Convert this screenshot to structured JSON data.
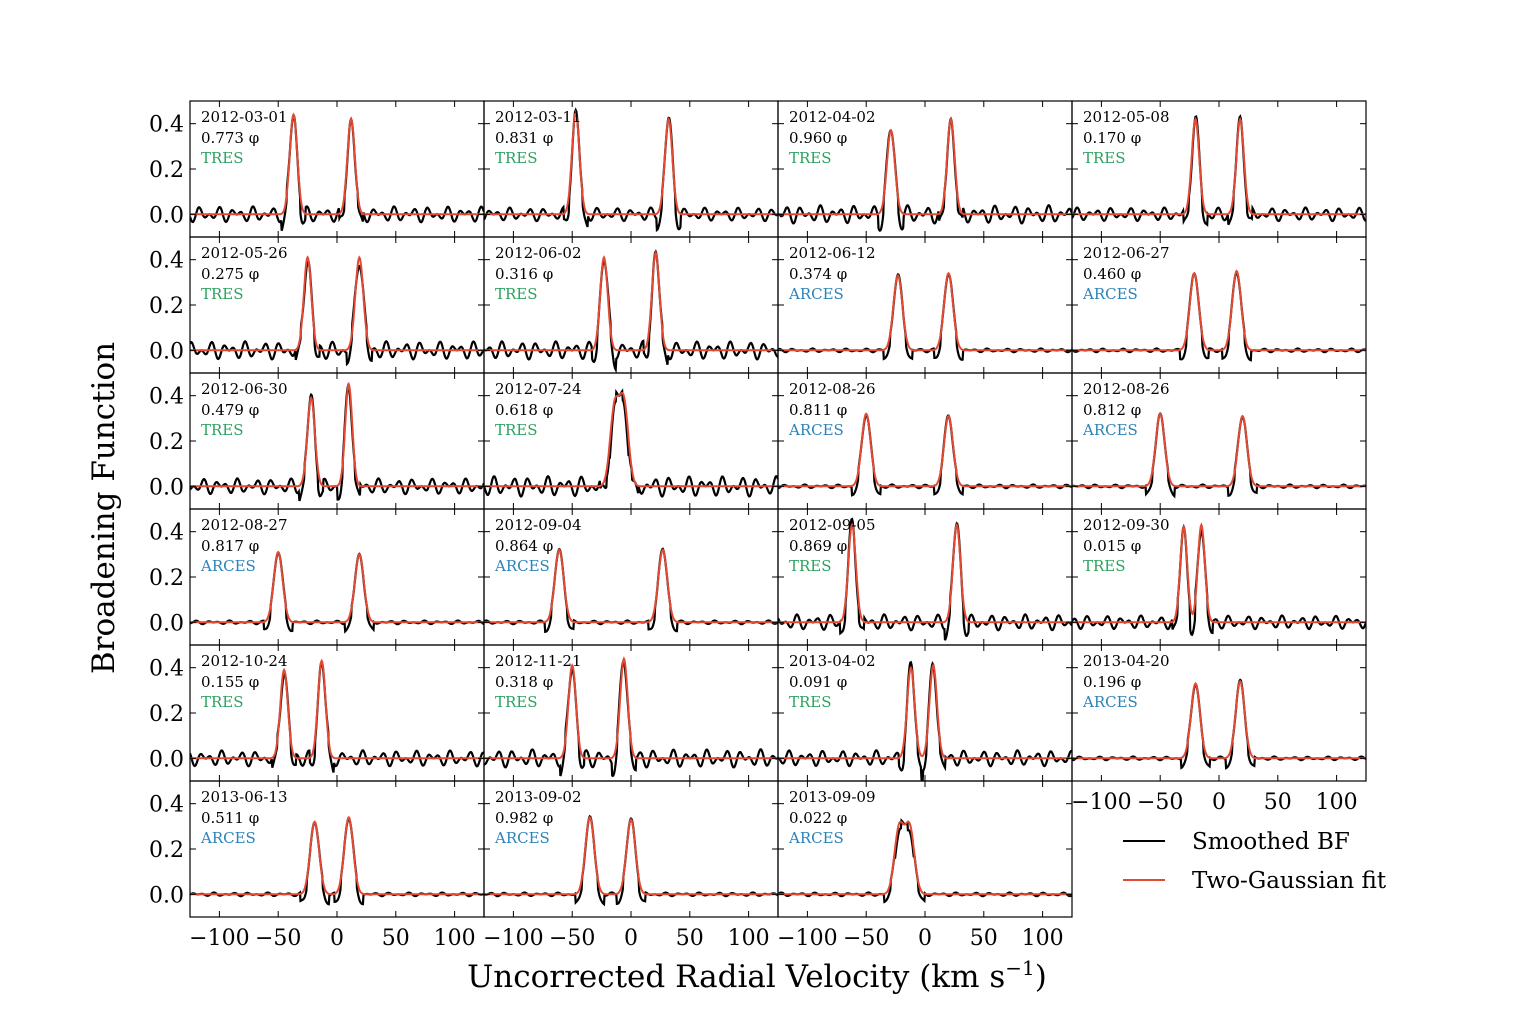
{
  "figure": {
    "xlabel": "Uncorrected Radial Velocity (km s",
    "xlabel_sup": "−1",
    "xlabel_close": ")",
    "ylabel": "Broadening Function",
    "legend": [
      {
        "label": "Smoothed BF",
        "color": "#000000"
      },
      {
        "label": "Two-Gaussian fit",
        "color": "#e24a33"
      }
    ],
    "instrument_colors": {
      "TRES": "#2ca25f",
      "ARCES": "#2b83ba"
    },
    "x_ticks": [
      "−100",
      "−50",
      "0",
      "50",
      "100"
    ],
    "y_ticks": [
      "0.0",
      "0.2",
      "0.4"
    ]
  },
  "chart_data": {
    "type": "line",
    "xlim": [
      -125,
      125
    ],
    "ylim": [
      -0.1,
      0.5
    ],
    "x_tick_values": [
      -100,
      -50,
      0,
      50,
      100
    ],
    "y_tick_values": [
      0.0,
      0.2,
      0.4
    ],
    "series_names": [
      "Smoothed BF",
      "Two-Gaussian fit"
    ],
    "panels": [
      {
        "date": "2012-03-01",
        "phase": "0.773 φ",
        "instrument": "TRES",
        "peaks": [
          {
            "center": -37,
            "amp": 0.44,
            "sigma": 3.2
          },
          {
            "center": 12,
            "amp": 0.42,
            "sigma": 3.2
          }
        ],
        "noise": 0.035
      },
      {
        "date": "2012-03-11",
        "phase": "0.831 φ",
        "instrument": "TRES",
        "peaks": [
          {
            "center": -47,
            "amp": 0.45,
            "sigma": 3.2
          },
          {
            "center": 32,
            "amp": 0.42,
            "sigma": 3.2
          }
        ],
        "noise": 0.03
      },
      {
        "date": "2012-04-02",
        "phase": "0.960 φ",
        "instrument": "TRES",
        "peaks": [
          {
            "center": -29,
            "amp": 0.37,
            "sigma": 3.4
          },
          {
            "center": 22,
            "amp": 0.42,
            "sigma": 3.2
          }
        ],
        "noise": 0.04
      },
      {
        "date": "2012-05-08",
        "phase": "0.170 φ",
        "instrument": "TRES",
        "peaks": [
          {
            "center": -20,
            "amp": 0.42,
            "sigma": 3.2
          },
          {
            "center": 18,
            "amp": 0.42,
            "sigma": 3.2
          }
        ],
        "noise": 0.03
      },
      {
        "date": "2012-05-26",
        "phase": "0.275 φ",
        "instrument": "TRES",
        "peaks": [
          {
            "center": -25,
            "amp": 0.41,
            "sigma": 3.2
          },
          {
            "center": 19,
            "amp": 0.41,
            "sigma": 3.4
          }
        ],
        "noise": 0.04
      },
      {
        "date": "2012-06-02",
        "phase": "0.316 φ",
        "instrument": "TRES",
        "peaks": [
          {
            "center": -23,
            "amp": 0.41,
            "sigma": 3.2
          },
          {
            "center": 21,
            "amp": 0.43,
            "sigma": 3.2
          }
        ],
        "noise": 0.04
      },
      {
        "date": "2012-06-12",
        "phase": "0.374 φ",
        "instrument": "ARCES",
        "peaks": [
          {
            "center": -23,
            "amp": 0.33,
            "sigma": 3.8
          },
          {
            "center": 20,
            "amp": 0.34,
            "sigma": 3.8
          }
        ],
        "noise": 0.008
      },
      {
        "date": "2012-06-27",
        "phase": "0.460 φ",
        "instrument": "ARCES",
        "peaks": [
          {
            "center": -21,
            "amp": 0.34,
            "sigma": 3.8
          },
          {
            "center": 15,
            "amp": 0.35,
            "sigma": 3.8
          }
        ],
        "noise": 0.008
      },
      {
        "date": "2012-06-30",
        "phase": "0.479 φ",
        "instrument": "TRES",
        "peaks": [
          {
            "center": -22,
            "amp": 0.39,
            "sigma": 3.2
          },
          {
            "center": 10,
            "amp": 0.45,
            "sigma": 3.0
          }
        ],
        "noise": 0.035
      },
      {
        "date": "2012-07-24",
        "phase": "0.618 φ",
        "instrument": "TRES",
        "peaks": [
          {
            "center": -14,
            "amp": 0.34,
            "sigma": 3.8
          },
          {
            "center": -6,
            "amp": 0.36,
            "sigma": 3.8
          }
        ],
        "noise": 0.045
      },
      {
        "date": "2012-08-26",
        "phase": "0.811 φ",
        "instrument": "ARCES",
        "peaks": [
          {
            "center": -50,
            "amp": 0.32,
            "sigma": 3.8
          },
          {
            "center": 20,
            "amp": 0.31,
            "sigma": 3.8
          }
        ],
        "noise": 0.008
      },
      {
        "date": "2012-08-26",
        "phase": "0.812 φ",
        "instrument": "ARCES",
        "peaks": [
          {
            "center": -50,
            "amp": 0.32,
            "sigma": 3.8
          },
          {
            "center": 20,
            "amp": 0.31,
            "sigma": 3.8
          }
        ],
        "noise": 0.008
      },
      {
        "date": "2012-08-27",
        "phase": "0.817 φ",
        "instrument": "ARCES",
        "peaks": [
          {
            "center": -50,
            "amp": 0.31,
            "sigma": 3.8
          },
          {
            "center": 19,
            "amp": 0.3,
            "sigma": 3.8
          }
        ],
        "noise": 0.008
      },
      {
        "date": "2012-09-04",
        "phase": "0.864 φ",
        "instrument": "ARCES",
        "peaks": [
          {
            "center": -61,
            "amp": 0.32,
            "sigma": 3.8
          },
          {
            "center": 27,
            "amp": 0.32,
            "sigma": 3.8
          }
        ],
        "noise": 0.008
      },
      {
        "date": "2012-09-05",
        "phase": "0.869 φ",
        "instrument": "TRES",
        "peaks": [
          {
            "center": -62,
            "amp": 0.43,
            "sigma": 3.2
          },
          {
            "center": 27,
            "amp": 0.43,
            "sigma": 3.2
          }
        ],
        "noise": 0.035
      },
      {
        "date": "2012-09-30",
        "phase": "0.015 φ",
        "instrument": "TRES",
        "peaks": [
          {
            "center": -30,
            "amp": 0.42,
            "sigma": 3.0
          },
          {
            "center": -15,
            "amp": 0.43,
            "sigma": 3.0
          }
        ],
        "noise": 0.03
      },
      {
        "date": "2012-10-24",
        "phase": "0.155 φ",
        "instrument": "TRES",
        "peaks": [
          {
            "center": -45,
            "amp": 0.39,
            "sigma": 3.2
          },
          {
            "center": -13,
            "amp": 0.43,
            "sigma": 3.2
          }
        ],
        "noise": 0.035
      },
      {
        "date": "2012-11-21",
        "phase": "0.318 φ",
        "instrument": "TRES",
        "peaks": [
          {
            "center": -50,
            "amp": 0.41,
            "sigma": 3.2
          },
          {
            "center": -6,
            "amp": 0.44,
            "sigma": 3.2
          }
        ],
        "noise": 0.04
      },
      {
        "date": "2013-04-02",
        "phase": "0.091 φ",
        "instrument": "TRES",
        "peaks": [
          {
            "center": -12,
            "amp": 0.4,
            "sigma": 3.2
          },
          {
            "center": 7,
            "amp": 0.41,
            "sigma": 3.2
          }
        ],
        "noise": 0.035
      },
      {
        "date": "2013-04-20",
        "phase": "0.196 φ",
        "instrument": "ARCES",
        "peaks": [
          {
            "center": -20,
            "amp": 0.33,
            "sigma": 3.8
          },
          {
            "center": 18,
            "amp": 0.34,
            "sigma": 3.8
          }
        ],
        "noise": 0.008
      },
      {
        "date": "2013-06-13",
        "phase": "0.511 φ",
        "instrument": "ARCES",
        "peaks": [
          {
            "center": -19,
            "amp": 0.32,
            "sigma": 3.8
          },
          {
            "center": 10,
            "amp": 0.34,
            "sigma": 3.8
          }
        ],
        "noise": 0.008
      },
      {
        "date": "2013-09-02",
        "phase": "0.982 φ",
        "instrument": "ARCES",
        "peaks": [
          {
            "center": -35,
            "amp": 0.34,
            "sigma": 3.8
          },
          {
            "center": 0,
            "amp": 0.33,
            "sigma": 3.8
          }
        ],
        "noise": 0.008
      },
      {
        "date": "2013-09-09",
        "phase": "0.022 φ",
        "instrument": "ARCES",
        "peaks": [
          {
            "center": -22,
            "amp": 0.29,
            "sigma": 4.0
          },
          {
            "center": -13,
            "amp": 0.29,
            "sigma": 4.0
          }
        ],
        "noise": 0.008
      }
    ]
  }
}
